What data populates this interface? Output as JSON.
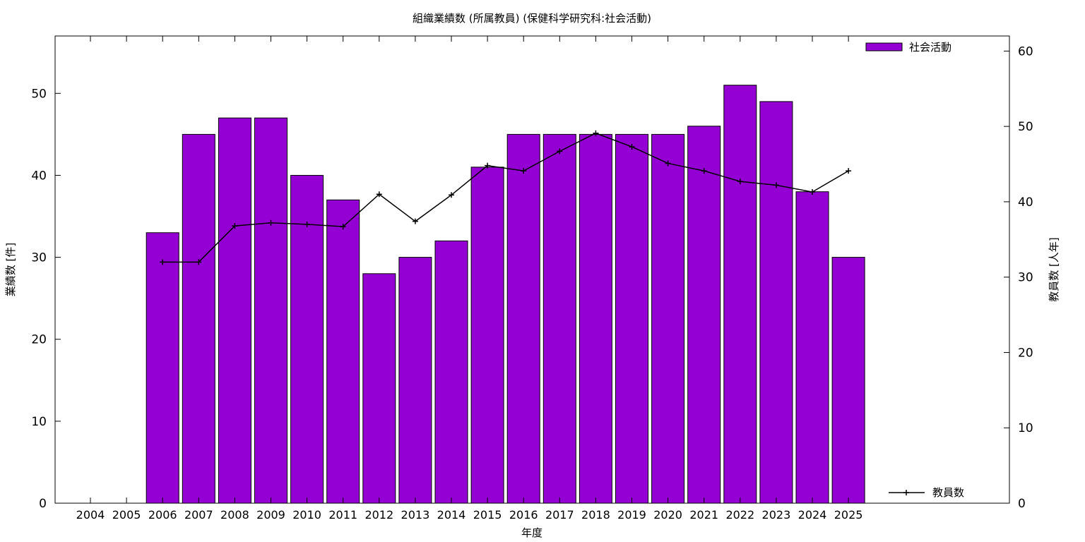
{
  "chart_data": {
    "type": "bar",
    "title": "組織業績数 (所属教員) (保健科学研究科:社会活動)",
    "xlabel": "年度",
    "ylabel": "業績数 [件]",
    "y2label": "教員数 [人年]",
    "categories": [
      "2004",
      "2005",
      "2006",
      "2007",
      "2008",
      "2009",
      "2010",
      "2011",
      "2012",
      "2013",
      "2014",
      "2015",
      "2016",
      "2017",
      "2018",
      "2019",
      "2020",
      "2021",
      "2022",
      "2023",
      "2024",
      "2025"
    ],
    "ylim": [
      0,
      57
    ],
    "y2lim": [
      0,
      62
    ],
    "yticks": [
      0,
      10,
      20,
      30,
      40,
      50
    ],
    "y2ticks": [
      0,
      10,
      20,
      30,
      40,
      50,
      60
    ],
    "grid": false,
    "series": [
      {
        "name": "社会活動",
        "type": "bar",
        "axis": "left",
        "color": "#9400D3",
        "values": [
          null,
          null,
          33,
          45,
          47,
          47,
          40,
          37,
          28,
          30,
          32,
          41,
          45,
          45,
          45,
          45,
          45,
          46,
          51,
          49,
          38,
          30
        ]
      },
      {
        "name": "教員数",
        "type": "line",
        "axis": "right",
        "color": "#000000",
        "marker": "plus",
        "values": [
          null,
          null,
          32,
          32,
          36.8,
          37.2,
          37,
          36.7,
          41,
          37.4,
          40.9,
          44.8,
          44.1,
          46.7,
          49.1,
          47.3,
          45.1,
          44.1,
          42.7,
          42.2,
          41.3,
          44.1
        ]
      }
    ],
    "legend": {
      "bar_position": "top-right",
      "line_position": "bottom-right"
    }
  }
}
